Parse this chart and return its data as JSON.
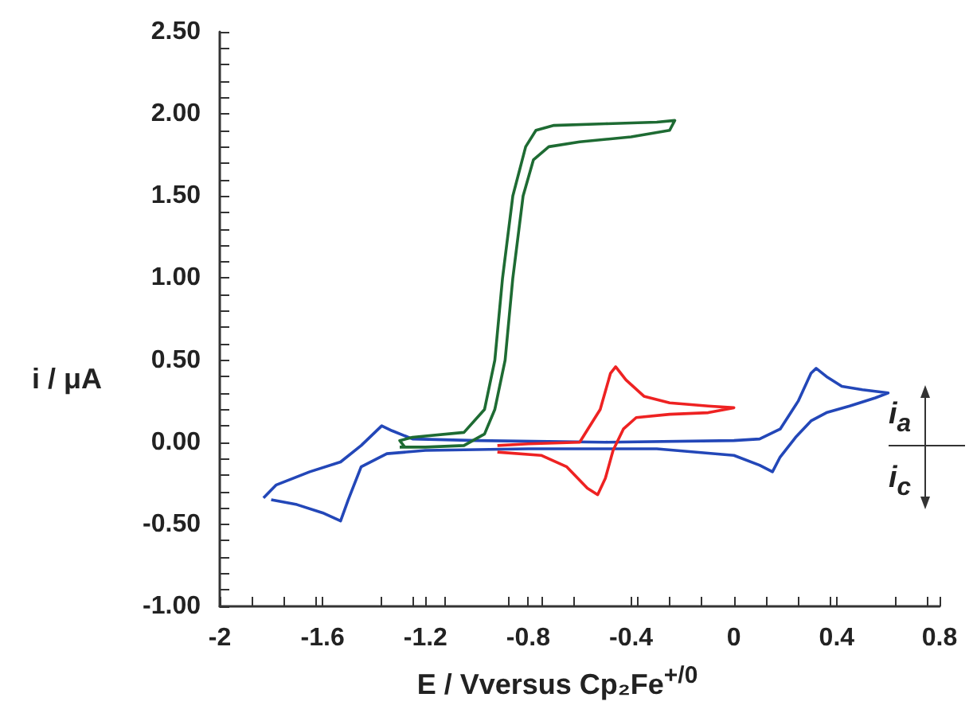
{
  "chart_data": {
    "type": "line",
    "xlabel": "E / Vversus Cp₂Fe$^{+/0}$",
    "ylabel": "i / μA",
    "annotations": [
      "i$_{a}$",
      "i$_{c}$"
    ],
    "xlim": [
      -2,
      0.8
    ],
    "xticks": [
      -2,
      -1.6,
      -1.2,
      -0.8,
      -0.4,
      0,
      0.4,
      0.8
    ],
    "ylim": [
      -1,
      2.5
    ],
    "yticks": [
      {
        "value": -1,
        "label": "-1.00"
      },
      {
        "value": -0.5,
        "label": "-0.50"
      },
      {
        "value": 0,
        "label": "0.00"
      },
      {
        "value": 0.5,
        "label": "0.50"
      },
      {
        "value": 1,
        "label": "1.00"
      },
      {
        "value": 1.5,
        "label": "1.50"
      },
      {
        "value": 2,
        "label": "2.00"
      },
      {
        "value": 2.5,
        "label": "2.50"
      }
    ],
    "series": [
      {
        "color": "#2347b8",
        "x": [
          -1.83,
          -1.78,
          -1.65,
          -1.53,
          -1.45,
          -1.37,
          -1.33,
          -1.25,
          -1.0,
          -0.5,
          0.0,
          0.1,
          0.18,
          0.25,
          0.3,
          0.32,
          0.36,
          0.42,
          0.5,
          0.6,
          0.55,
          0.45,
          0.36,
          0.3,
          0.24,
          0.18,
          0.15,
          0.1,
          0.0,
          -0.3,
          -0.8,
          -1.2,
          -1.35,
          -1.45,
          -1.5,
          -1.53,
          -1.6,
          -1.7,
          -1.8
        ],
        "values": [
          -0.34,
          -0.26,
          -0.18,
          -0.12,
          -0.02,
          0.1,
          0.07,
          0.02,
          0.01,
          0.0,
          0.01,
          0.02,
          0.08,
          0.25,
          0.42,
          0.45,
          0.4,
          0.34,
          0.32,
          0.3,
          0.27,
          0.22,
          0.18,
          0.13,
          0.03,
          -0.09,
          -0.18,
          -0.14,
          -0.08,
          -0.04,
          -0.04,
          -0.05,
          -0.07,
          -0.15,
          -0.35,
          -0.48,
          -0.43,
          -0.38,
          -0.35
        ]
      },
      {
        "color": "#ee2222",
        "x": [
          -0.92,
          -0.8,
          -0.6,
          -0.52,
          -0.48,
          -0.46,
          -0.42,
          -0.35,
          -0.25,
          -0.1,
          0.0,
          -0.1,
          -0.25,
          -0.38,
          -0.43,
          -0.47,
          -0.5,
          -0.53,
          -0.57,
          -0.65,
          -0.75,
          -0.92
        ],
        "values": [
          -0.02,
          -0.01,
          0.0,
          0.2,
          0.42,
          0.46,
          0.38,
          0.28,
          0.24,
          0.22,
          0.21,
          0.18,
          0.17,
          0.15,
          0.08,
          -0.05,
          -0.22,
          -0.32,
          -0.28,
          -0.15,
          -0.08,
          -0.06
        ]
      },
      {
        "color": "#1e6b33",
        "x": [
          -1.3,
          -1.2,
          -1.05,
          -0.97,
          -0.93,
          -0.89,
          -0.86,
          -0.82,
          -0.78,
          -0.72,
          -0.6,
          -0.4,
          -0.25,
          -0.23,
          -0.3,
          -0.5,
          -0.7,
          -0.77,
          -0.81,
          -0.86,
          -0.9,
          -0.93,
          -0.97,
          -1.05,
          -1.25,
          -1.3,
          -1.28
        ],
        "values": [
          -0.03,
          -0.03,
          -0.02,
          0.05,
          0.2,
          0.5,
          1.0,
          1.5,
          1.72,
          1.8,
          1.83,
          1.86,
          1.9,
          1.96,
          1.95,
          1.94,
          1.93,
          1.9,
          1.8,
          1.5,
          1.0,
          0.5,
          0.2,
          0.06,
          0.03,
          0.01,
          -0.03
        ]
      }
    ]
  }
}
